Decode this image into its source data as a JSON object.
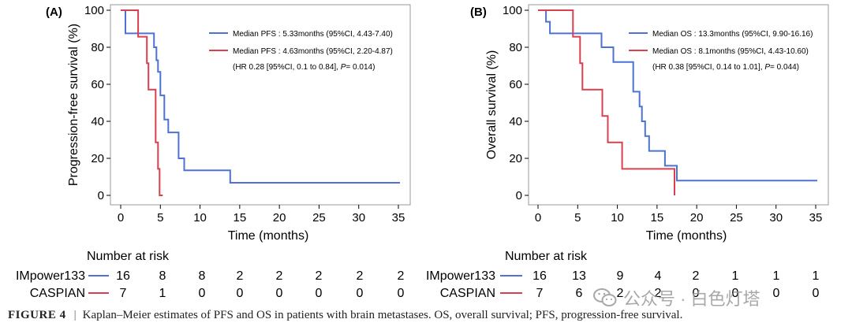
{
  "caption": {
    "label": "FIGURE 4",
    "text": "Kaplan–Meier estimates of PFS and OS in patients with brain metastases. OS, overall survival; PFS, progression-free survival."
  },
  "watermark": {
    "text": "公众号 · 白色灯塔",
    "icon": "wechat-icon"
  },
  "colors": {
    "IMpower133": "#4d72d6",
    "CASPIAN": "#d9404f",
    "axis": "#000000",
    "frame": "#999999"
  },
  "chart_data": [
    {
      "type": "line",
      "panel": "(A)",
      "xlabel": "Time (months)",
      "ylabel": "Progression-free survival (%)",
      "xlim": [
        0,
        35
      ],
      "ylim": [
        0,
        100
      ],
      "xticks": [
        0,
        5,
        10,
        15,
        20,
        25,
        30,
        35
      ],
      "yticks": [
        0,
        20,
        40,
        60,
        80,
        100
      ],
      "grid": false,
      "legend_position": "top-right",
      "series": [
        {
          "name": "Median PFS : 5.33months (95%CI, 4.43-7.40)",
          "group": "IMpower133",
          "x": [
            0,
            0.6,
            0.6,
            4.2,
            4.2,
            4.5,
            4.5,
            4.7,
            4.7,
            5.0,
            5.0,
            5.5,
            5.5,
            6.0,
            6.0,
            7.3,
            7.3,
            8.0,
            8.0,
            13.8,
            13.8,
            35.2
          ],
          "y": [
            100,
            100,
            87.5,
            87.5,
            80,
            80,
            73,
            73,
            66.7,
            66.7,
            54,
            54,
            41,
            41,
            34,
            34,
            20,
            20,
            13.5,
            13.5,
            6.8,
            6.8
          ]
        },
        {
          "name": "Median PFS : 4.63months (95%CI, 2.20-4.87)",
          "group": "CASPIAN",
          "x": [
            0,
            2.2,
            2.2,
            3.3,
            3.3,
            3.5,
            3.5,
            4.4,
            4.4,
            4.7,
            4.7,
            4.9,
            4.9,
            5.3
          ],
          "y": [
            100,
            100,
            85.7,
            85.7,
            71.4,
            71.4,
            57.1,
            57.1,
            28.6,
            28.6,
            14.3,
            14.3,
            0,
            0
          ]
        }
      ],
      "annotation": {
        "hr_text": "(HR 0.28 [95%CI, 0.1 to 0.84], ",
        "p_label": "P",
        "p_value": "= 0.014)"
      },
      "risk_table": {
        "title": "Number at risk",
        "rows": [
          {
            "label": "IMpower133",
            "values": [
              "16",
              "8",
              "8",
              "2",
              "2",
              "2",
              "2",
              "2"
            ]
          },
          {
            "label": "CASPIAN",
            "values": [
              "7",
              "1",
              "0",
              "0",
              "0",
              "0",
              "0",
              "0"
            ]
          }
        ]
      }
    },
    {
      "type": "line",
      "panel": "(B)",
      "xlabel": "Time (months)",
      "ylabel": "Overall survival (%)",
      "xlim": [
        0,
        35
      ],
      "ylim": [
        0,
        100
      ],
      "xticks": [
        0,
        5,
        10,
        15,
        20,
        25,
        30,
        35
      ],
      "yticks": [
        0,
        20,
        40,
        60,
        80,
        100
      ],
      "grid": false,
      "legend_position": "top-right",
      "series": [
        {
          "name": "Median OS : 13.3months (95%CI, 9.90-16.16)",
          "group": "IMpower133",
          "x": [
            0,
            1.0,
            1.0,
            1.5,
            1.5,
            8.0,
            8.0,
            9.5,
            9.5,
            12.0,
            12.0,
            12.8,
            12.8,
            13.1,
            13.1,
            13.5,
            13.5,
            14.0,
            14.0,
            16.0,
            16.0,
            17.5,
            17.5,
            24.5,
            24.5,
            35.2
          ],
          "y": [
            100,
            100,
            93.8,
            93.8,
            87.5,
            87.5,
            80,
            80,
            72,
            72,
            56,
            56,
            48,
            48,
            40,
            40,
            32,
            32,
            24,
            24,
            16,
            16,
            8,
            8,
            8,
            8
          ]
        },
        {
          "name": "Median OS : 8.1months (95%CI, 4.43-10.60)",
          "group": "CASPIAN",
          "x": [
            0,
            4.4,
            4.4,
            5.3,
            5.3,
            5.6,
            5.6,
            8.1,
            8.1,
            8.8,
            8.8,
            10.6,
            10.6,
            17.2,
            17.2
          ],
          "y": [
            100,
            100,
            85.7,
            85.7,
            71.4,
            71.4,
            57.1,
            57.1,
            42.9,
            42.9,
            28.6,
            28.6,
            14.3,
            14.3,
            0
          ]
        }
      ],
      "annotation": {
        "hr_text": "(HR 0.38 [95%CI, 0.14 to 1.01], ",
        "p_label": "P",
        "p_value": "= 0.044)"
      },
      "risk_table": {
        "title": "Number at risk",
        "rows": [
          {
            "label": "IMpower133",
            "values": [
              "16",
              "13",
              "9",
              "4",
              "2",
              "1",
              "1",
              "1"
            ]
          },
          {
            "label": "CASPIAN",
            "values": [
              "7",
              "6",
              "2",
              "2",
              "0",
              "0",
              "0",
              "0"
            ]
          }
        ]
      }
    }
  ]
}
